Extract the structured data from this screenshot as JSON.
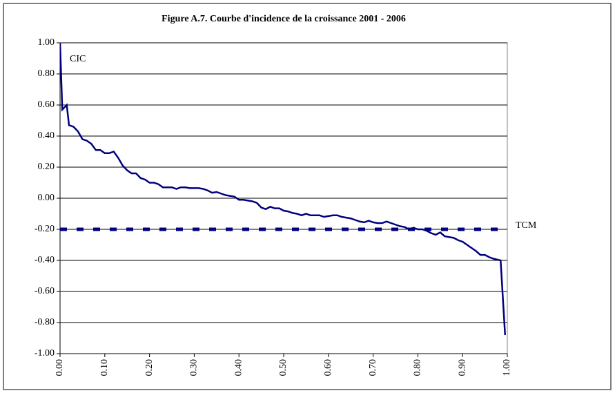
{
  "chart_data": {
    "type": "line",
    "title": "Figure A.7.  Courbe d'incidence de la croissance 2001 - 2006",
    "xlim": [
      0,
      1
    ],
    "ylim": [
      -1,
      1
    ],
    "xticks": [
      {
        "value": 0,
        "label": "0.00"
      },
      {
        "value": 0.1,
        "label": "0.10"
      },
      {
        "value": 0.2,
        "label": "0.20"
      },
      {
        "value": 0.3,
        "label": "0.30"
      },
      {
        "value": 0.4,
        "label": "0.40"
      },
      {
        "value": 0.5,
        "label": "0.50"
      },
      {
        "value": 0.6,
        "label": "0.60"
      },
      {
        "value": 0.7,
        "label": "0.70"
      },
      {
        "value": 0.8,
        "label": "0.80"
      },
      {
        "value": 0.9,
        "label": "0.90"
      },
      {
        "value": 1,
        "label": "1.00"
      }
    ],
    "yticks": [
      {
        "value": 1,
        "label": "1.00"
      },
      {
        "value": 0.8,
        "label": "0.80"
      },
      {
        "value": 0.6,
        "label": "0.60"
      },
      {
        "value": 0.4,
        "label": "0.40"
      },
      {
        "value": 0.2,
        "label": "0.20"
      },
      {
        "value": 0,
        "label": "0.00"
      },
      {
        "value": -0.2,
        "label": "-0.20"
      },
      {
        "value": -0.4,
        "label": "-0.40"
      },
      {
        "value": -0.6,
        "label": "-0.60"
      },
      {
        "value": -0.8,
        "label": "-0.80"
      },
      {
        "value": -1,
        "label": "-1.00"
      }
    ],
    "grid": true,
    "series": [
      {
        "name": "CIC",
        "color": "#000080",
        "x": [
          0,
          0.005,
          0.015,
          0.02,
          0.03,
          0.04,
          0.05,
          0.06,
          0.07,
          0.08,
          0.09,
          0.1,
          0.11,
          0.12,
          0.13,
          0.14,
          0.15,
          0.16,
          0.17,
          0.18,
          0.19,
          0.2,
          0.21,
          0.22,
          0.23,
          0.24,
          0.25,
          0.26,
          0.27,
          0.28,
          0.29,
          0.3,
          0.31,
          0.32,
          0.33,
          0.34,
          0.35,
          0.36,
          0.37,
          0.38,
          0.39,
          0.4,
          0.41,
          0.42,
          0.43,
          0.44,
          0.45,
          0.46,
          0.47,
          0.48,
          0.49,
          0.5,
          0.51,
          0.52,
          0.53,
          0.54,
          0.55,
          0.56,
          0.57,
          0.58,
          0.59,
          0.6,
          0.61,
          0.62,
          0.63,
          0.64,
          0.65,
          0.66,
          0.67,
          0.68,
          0.69,
          0.7,
          0.71,
          0.72,
          0.73,
          0.74,
          0.75,
          0.76,
          0.77,
          0.78,
          0.79,
          0.8,
          0.81,
          0.82,
          0.83,
          0.84,
          0.85,
          0.86,
          0.87,
          0.88,
          0.89,
          0.9,
          0.91,
          0.92,
          0.93,
          0.94,
          0.95,
          0.96,
          0.97,
          0.985,
          0.995
        ],
        "values": [
          1.0,
          0.57,
          0.6,
          0.47,
          0.46,
          0.43,
          0.38,
          0.37,
          0.35,
          0.31,
          0.31,
          0.29,
          0.29,
          0.3,
          0.26,
          0.21,
          0.18,
          0.16,
          0.16,
          0.13,
          0.12,
          0.1,
          0.1,
          0.09,
          0.07,
          0.07,
          0.07,
          0.06,
          0.07,
          0.07,
          0.065,
          0.065,
          0.065,
          0.06,
          0.05,
          0.035,
          0.04,
          0.03,
          0.02,
          0.015,
          0.01,
          -0.01,
          -0.01,
          -0.015,
          -0.02,
          -0.03,
          -0.06,
          -0.07,
          -0.055,
          -0.065,
          -0.065,
          -0.08,
          -0.085,
          -0.095,
          -0.1,
          -0.11,
          -0.1,
          -0.11,
          -0.11,
          -0.11,
          -0.12,
          -0.115,
          -0.11,
          -0.11,
          -0.12,
          -0.125,
          -0.13,
          -0.14,
          -0.15,
          -0.155,
          -0.145,
          -0.155,
          -0.16,
          -0.16,
          -0.15,
          -0.16,
          -0.17,
          -0.18,
          -0.185,
          -0.2,
          -0.19,
          -0.2,
          -0.2,
          -0.21,
          -0.225,
          -0.235,
          -0.22,
          -0.245,
          -0.25,
          -0.255,
          -0.27,
          -0.28,
          -0.3,
          -0.32,
          -0.34,
          -0.365,
          -0.365,
          -0.38,
          -0.39,
          -0.4,
          -0.88
        ]
      },
      {
        "name": "TCM",
        "color": "#000080",
        "dashed": true,
        "x": [
          0,
          1
        ],
        "values": [
          -0.2,
          -0.2
        ]
      }
    ]
  }
}
